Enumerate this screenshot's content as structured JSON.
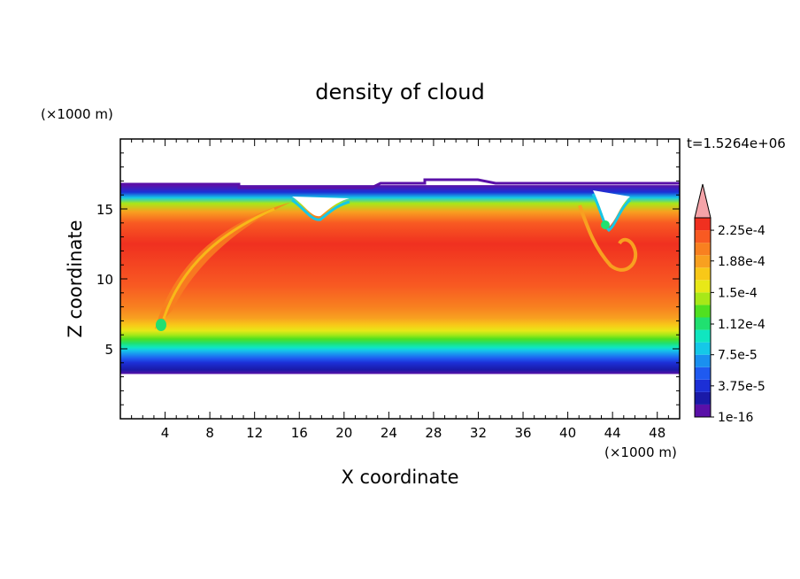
{
  "chart_data": {
    "type": "heatmap",
    "title": "density of cloud",
    "xlabel": "X coordinate",
    "ylabel": "Z coordinate",
    "x_unit": "(×1000 m)",
    "y_unit": "(×1000 m)",
    "time_label": "t=1.5264e+06",
    "xlim": [
      0,
      50
    ],
    "ylim": [
      0,
      20
    ],
    "x_ticks": [
      4,
      8,
      12,
      16,
      20,
      24,
      28,
      32,
      36,
      40,
      44,
      48
    ],
    "y_ticks": [
      5,
      10,
      15
    ],
    "x_tick_labels": [
      "4",
      "8",
      "12",
      "16",
      "20",
      "24",
      "28",
      "32",
      "36",
      "40",
      "44",
      "48"
    ],
    "y_tick_labels": [
      "5",
      "10",
      "15"
    ],
    "colorbar": {
      "labels": [
        "2.25e-4",
        "1.88e-4",
        "1.5e-4",
        "1.12e-4",
        "7.5e-5",
        "3.75e-5",
        "1e-16"
      ],
      "label_levels": [
        0.000225,
        0.000188,
        0.00015,
        0.000112,
        7.5e-05,
        3.75e-05,
        1e-16
      ],
      "colors": [
        "#5a10a8",
        "#1a1aa8",
        "#1c2fd6",
        "#1f5af0",
        "#1a90f0",
        "#15c8e8",
        "#10e6c0",
        "#20e070",
        "#50e020",
        "#a8e818",
        "#e8e818",
        "#f8c818",
        "#f8a020",
        "#f88020",
        "#f85a22",
        "#f03020"
      ],
      "extend_color": "#f4a3a8"
    },
    "profile": {
      "z_km": [
        3.2,
        3.5,
        4.0,
        4.3,
        4.6,
        4.9,
        5.1,
        5.4,
        5.7,
        6.0,
        6.3,
        6.7,
        7.2,
        8.0,
        9.5,
        12.5,
        14.0,
        14.8,
        15.4,
        15.8,
        16.2,
        16.7
      ],
      "level_idx": [
        0,
        1,
        2,
        3,
        4,
        5,
        6,
        7,
        8,
        9,
        10,
        11,
        12,
        13,
        14,
        15,
        14,
        12,
        9,
        5,
        2,
        0
      ]
    },
    "top_boundary_km": 16.7,
    "bottom_boundary_km": 3.2
  }
}
